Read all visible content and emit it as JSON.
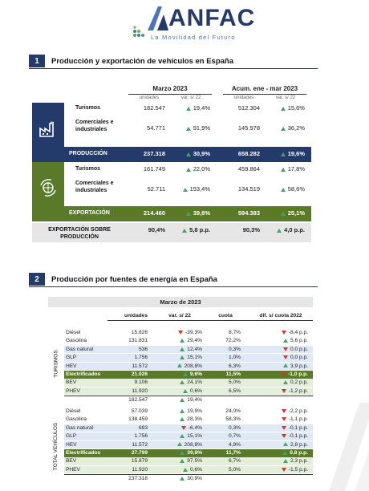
{
  "logo": {
    "wordmark": "ANFAC",
    "tagline": "La Movilidad del Futuro"
  },
  "section1": {
    "num": "1",
    "title": "Producción y exportación de vehículos en España",
    "period_a": "Marzo 2023",
    "period_b": "Acum. ene - mar 2023",
    "col_units": "unidades",
    "col_var": "var. s/ 22",
    "rows": [
      {
        "label": "Turismos",
        "a_units": "182.547",
        "a_var": "19,4%",
        "b_units": "512.304",
        "b_var": "15,6%"
      },
      {
        "label": "Comerciales e industriales",
        "a_units": "54.771",
        "a_var": "91,9%",
        "b_units": "145.978",
        "b_var": "36,2%"
      },
      {
        "label": "PRODUCCIÓN",
        "a_units": "237.318",
        "a_var": "30,9%",
        "b_units": "658.282",
        "b_var": "19,6%"
      },
      {
        "label": "Turismos",
        "a_units": "161.749",
        "a_var": "22,0%",
        "b_units": "459.864",
        "b_var": "17,8%"
      },
      {
        "label": "Comerciales e industriales",
        "a_units": "52.711",
        "a_var": "153,4%",
        "b_units": "134.519",
        "b_var": "58,6%"
      },
      {
        "label": "EXPORTACIÓN",
        "a_units": "214.460",
        "a_var": "39,8%",
        "b_units": "594.383",
        "b_var": "25,1%"
      },
      {
        "label": "EXPORTACIÓN SOBRE PRODUCCIÓN",
        "a_units": "90,4%",
        "a_var": "5,8 p.p.",
        "b_units": "90,3%",
        "b_var": "4,0 p.p."
      }
    ],
    "colors": {
      "blue": "#243a6b",
      "green": "#5a7a2a",
      "up": "#4aa06a",
      "down": "#d03a2a"
    }
  },
  "section2": {
    "num": "2",
    "title": "Producción por fuentes de energía en España",
    "period": "Marzo de 2023",
    "headers": {
      "units": "unidades",
      "var": "var. s/ 22",
      "share": "cuota",
      "diff": "dif. s/ cuota 2022"
    },
    "group_a": "TURISMOS",
    "group_b": "TOTAL VEHÍCULOS",
    "turismos": [
      {
        "label": "Diésel",
        "units": "15.826",
        "dir": "down",
        "var": "-39,3%",
        "share": "8,7%",
        "ddir": "down",
        "diff": "-8,4 p.p.",
        "style": ""
      },
      {
        "label": "Gasolina",
        "units": "131.831",
        "dir": "up",
        "var": "29,4%",
        "share": "72,2%",
        "ddir": "up",
        "diff": "5,6 p.p.",
        "style": ""
      },
      {
        "label": "Gas natural",
        "units": "536",
        "dir": "up",
        "var": "12,4%",
        "share": "0,3%",
        "ddir": "down",
        "diff": "0,0 p.p.",
        "style": "light"
      },
      {
        "label": "GLP",
        "units": "1.756",
        "dir": "up",
        "var": "15,1%",
        "share": "1,0%",
        "ddir": "down",
        "diff": "0,0 p.p.",
        "style": "light"
      },
      {
        "label": "HEV",
        "units": "11.572",
        "dir": "up",
        "var": "208,8%",
        "share": "6,3%",
        "ddir": "up",
        "diff": "3,9 p.p.",
        "style": "light"
      },
      {
        "label": "Electrificados",
        "units": "21.026",
        "dir": "up",
        "var": "9,6%",
        "share": "11,5%",
        "ddir": "down",
        "diff": "-1,0 p.p.",
        "style": "green"
      },
      {
        "label": "BEV",
        "units": "9.106",
        "dir": "up",
        "var": "24,1%",
        "share": "5,0%",
        "ddir": "up",
        "diff": "0,2 p.p.",
        "style": "lgreen"
      },
      {
        "label": "PHEV",
        "units": "11.920",
        "dir": "up",
        "var": "0,6%",
        "share": "6,5%",
        "ddir": "down",
        "diff": "-1,2 p.p.",
        "style": "lgreen"
      },
      {
        "label": "",
        "units": "182.547",
        "dir": "up",
        "var": "19,4%",
        "share": "",
        "ddir": "",
        "diff": "",
        "style": "total"
      }
    ],
    "total": [
      {
        "label": "Diésel",
        "units": "57.039",
        "dir": "up",
        "var": "19,9%",
        "share": "24,0%",
        "ddir": "down",
        "diff": "-2,2 p.p.",
        "style": ""
      },
      {
        "label": "Gasolina",
        "units": "138.459",
        "dir": "up",
        "var": "28,3%",
        "share": "58,3%",
        "ddir": "down",
        "diff": "-1,1 p.p.",
        "style": ""
      },
      {
        "label": "Gas natural",
        "units": "693",
        "dir": "down",
        "var": "-6,4%",
        "share": "0,3%",
        "ddir": "down",
        "diff": "-0,1 p.p.",
        "style": "light"
      },
      {
        "label": "GLP",
        "units": "1.756",
        "dir": "up",
        "var": "15,1%",
        "share": "0,7%",
        "ddir": "down",
        "diff": "-0,1 p.p.",
        "style": "light"
      },
      {
        "label": "HEV",
        "units": "11.572",
        "dir": "up",
        "var": "208,8%",
        "share": "4,9%",
        "ddir": "up",
        "diff": "2,8 p.p.",
        "style": "light"
      },
      {
        "label": "Electrificados",
        "units": "27.799",
        "dir": "up",
        "var": "39,8%",
        "share": "11,7%",
        "ddir": "up",
        "diff": "0,8 p.p.",
        "style": "green"
      },
      {
        "label": "BEV",
        "units": "15.879",
        "dir": "up",
        "var": "97,5%",
        "share": "6,7%",
        "ddir": "up",
        "diff": "2,3 p.p.",
        "style": "lgreen"
      },
      {
        "label": "PHEV",
        "units": "11.920",
        "dir": "up",
        "var": "0,6%",
        "share": "5,0%",
        "ddir": "down",
        "diff": "-1,5 p.p.",
        "style": "lgreen"
      },
      {
        "label": "",
        "units": "237.318",
        "dir": "up",
        "var": "30,9%",
        "share": "",
        "ddir": "",
        "diff": "",
        "style": "total"
      }
    ]
  }
}
